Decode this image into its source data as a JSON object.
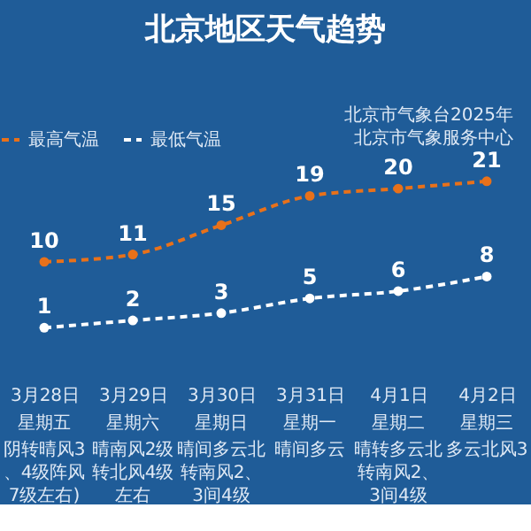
{
  "chart_data": {
    "type": "line",
    "title": "北京地区天气趋势",
    "categories": [
      "3月28日",
      "3月29日",
      "3月30日",
      "3月31日",
      "4月1日",
      "4月2日"
    ],
    "series": [
      {
        "name": "最高气温",
        "color": "#e8711a",
        "values": [
          10,
          11,
          15,
          19,
          20,
          21
        ]
      },
      {
        "name": "最低气温",
        "color": "#ffffff",
        "values": [
          1,
          2,
          3,
          5,
          6,
          8
        ]
      }
    ],
    "data_labels": true,
    "legend": "top left",
    "marker": "circle",
    "line_style": "dashed",
    "annotations": [
      "北京市气象台2025年",
      "北京市气象服务中心",
      "星期五",
      "星期六",
      "星期日",
      "星期一",
      "星期二",
      "星期三",
      "阴转晴风3、4级阵风7级左右)",
      "晴南风2级转北风4级左右",
      "晴间多云北转南风2、3间4级",
      "晴间多云",
      "晴转多云北转南风2、3间4级",
      "多云北风3"
    ]
  }
}
